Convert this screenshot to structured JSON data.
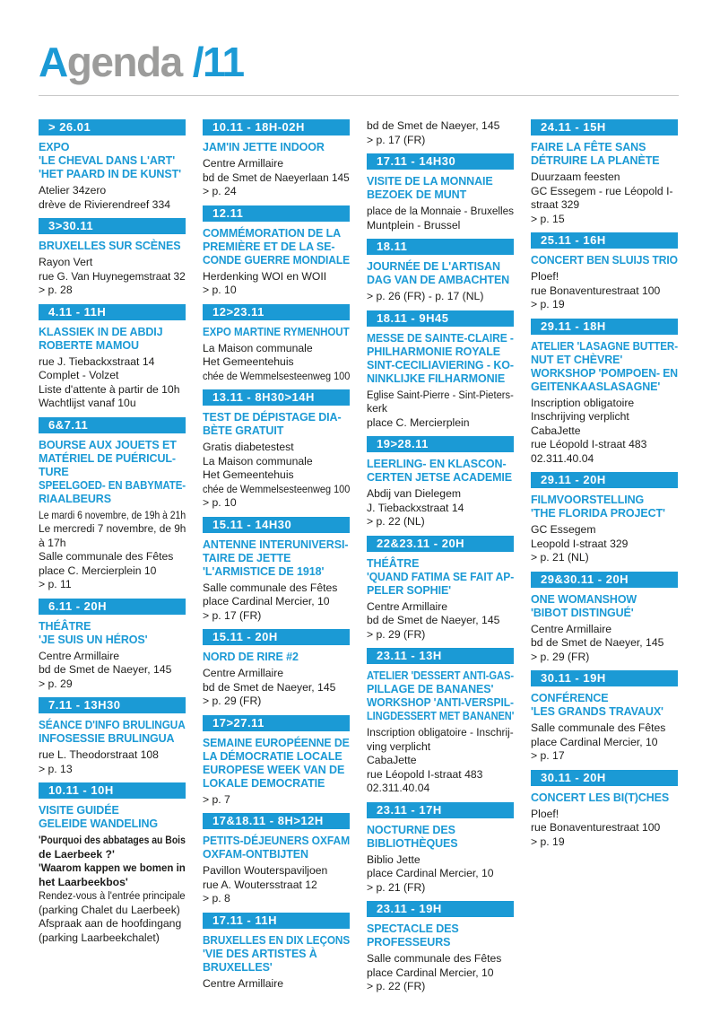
{
  "colors": {
    "accent_blue": "#1b9ad5",
    "title_gray": "#9c9c9b",
    "body_text": "#1d1d1b",
    "rule_gray": "#c8c8c8",
    "bar_text": "#ffffff"
  },
  "header": {
    "accent_letter": "A",
    "title_rest": "genda",
    "issue": "/11"
  },
  "columns": [
    {
      "events": [
        {
          "date": "> 26.01",
          "title_lines": [
            "EXPO",
            "'LE CHEVAL DANS L'ART'",
            "'HET PAARD IN DE KUNST'"
          ],
          "body_lines": [
            "Atelier 34zero",
            "drève de Rivierendreef 334"
          ]
        },
        {
          "date": "3>30.11",
          "title_lines": [
            "BRUXELLES SUR SCÈNES"
          ],
          "body_lines": [
            "Rayon Vert",
            "rue G. Van Huynegemstraat 32",
            "> p. 28"
          ]
        },
        {
          "date": "4.11 - 11H",
          "title_lines": [
            "KLASSIEK IN DE ABDIJ",
            "ROBERTE MAMOU"
          ],
          "body_lines": [
            "rue J. Tiebackxstraat 14",
            "Complet - Volzet",
            "Liste d'attente à partir de 10h",
            "Wachtlijst vanaf 10u"
          ]
        },
        {
          "date": "6&7.11",
          "title_lines": [
            "BOURSE AUX JOUETS ET",
            "MATÉRIEL DE PUÉRICUL-",
            "TURE",
            "SPEELGOED- EN BABYMATE-",
            "RIAALBEURS"
          ],
          "body_lines": [
            "Le mardi 6 novembre, de 19h à 21h",
            "Le mercredi 7 novembre, de 9h",
            "à 17h",
            "Salle communale des Fêtes",
            "place C. Mercierplein 10",
            "> p. 11"
          ]
        },
        {
          "date": "6.11 - 20H",
          "title_lines": [
            "THÉÂTRE",
            "'JE SUIS UN HÉROS'"
          ],
          "body_lines": [
            "Centre Armillaire",
            "bd de Smet de Naeyer, 145",
            "> p. 29"
          ]
        },
        {
          "date": "7.11 - 13H30",
          "title_lines": [
            "SÉANCE D'INFO BRULINGUA",
            "INFOSESSIE BRULINGUA"
          ],
          "body_lines": [
            "rue L. Theodorstraat 108",
            "> p. 13"
          ]
        },
        {
          "date": "10.11 - 10H",
          "title_lines": [
            "VISITE GUIDÉE",
            "GELEIDE WANDELING"
          ],
          "body_lines": [
            {
              "text": "'Pourquoi des abbatages au Bois",
              "bold": true
            },
            {
              "text": "de Laerbeek ?'",
              "bold": true
            },
            {
              "text": "'Waarom kappen we bomen in",
              "bold": true
            },
            {
              "text": "het Laarbeekbos'",
              "bold": true
            },
            "Rendez-vous à l'entrée principale",
            "(parking Chalet du Laerbeek)",
            "Afspraak aan de hoofdingang",
            "(parking Laarbeekchalet)"
          ]
        }
      ]
    },
    {
      "events": [
        {
          "date": "10.11 - 18H-02H",
          "title_lines": [
            "JAM'IN JETTE INDOOR"
          ],
          "body_lines": [
            "Centre Armillaire",
            "bd de Smet de Naeyerlaan 145",
            "> p. 24"
          ]
        },
        {
          "date": "12.11",
          "title_lines": [
            "COMMÉMORATION DE LA",
            "PREMIÈRE ET DE LA SE-",
            "CONDE GUERRE MONDIALE"
          ],
          "body_lines": [
            "Herdenking WOI en WOII",
            "> p. 10"
          ]
        },
        {
          "date": "12>23.11",
          "title_lines": [
            "EXPO MARTINE RYMENHOUT"
          ],
          "body_lines": [
            "La Maison communale",
            "Het Gemeentehuis",
            "chée de Wemmelsesteenweg 100"
          ]
        },
        {
          "date": "13.11 - 8H30>14H",
          "title_lines": [
            "TEST DE DÉPISTAGE DIA-",
            "BÈTE GRATUIT"
          ],
          "body_lines": [
            "Gratis diabetestest",
            "La Maison communale",
            "Het Gemeentehuis",
            "chée de Wemmelsesteenweg 100",
            "> p. 10"
          ]
        },
        {
          "date": "15.11 - 14H30",
          "title_lines": [
            "ANTENNE INTERUNIVERSI-",
            "TAIRE DE JETTE",
            "'L'ARMISTICE DE 1918'"
          ],
          "body_lines": [
            "Salle communale des Fêtes",
            "place Cardinal Mercier, 10",
            "> p. 17 (FR)"
          ]
        },
        {
          "date": "15.11 - 20H",
          "title_lines": [
            "NORD DE RIRE #2"
          ],
          "body_lines": [
            "Centre Armillaire",
            "bd de Smet de Naeyer, 145",
            "> p. 29 (FR)"
          ]
        },
        {
          "date": "17>27.11",
          "title_lines": [
            "SEMAINE EUROPÉENNE DE",
            "LA DÉMOCRATIE LOCALE",
            "EUROPESE WEEK VAN DE",
            "LOKALE DEMOCRATIE"
          ],
          "body_lines": [
            "> p. 7"
          ]
        },
        {
          "date": "17&18.11 - 8H>12H",
          "title_lines": [
            "PETITS-DÉJEUNERS OXFAM",
            "OXFAM-ONTBIJTEN"
          ],
          "body_lines": [
            "Pavillon Wouterspaviljoen",
            "rue A. Woutersstraat 12",
            "> p. 8"
          ]
        },
        {
          "date": "17.11 - 11H",
          "title_lines": [
            "BRUXELLES EN DIX LEÇONS",
            "'VIE DES ARTISTES À",
            "BRUXELLES'"
          ],
          "body_lines": [
            "Centre Armillaire"
          ]
        }
      ]
    },
    {
      "events": [
        {
          "date": null,
          "title_lines": [],
          "body_lines": [
            "bd de Smet de Naeyer, 145",
            "> p. 17 (FR)"
          ]
        },
        {
          "date": "17.11 - 14H30",
          "title_lines": [
            "VISITE DE LA MONNAIE",
            "BEZOEK DE MUNT"
          ],
          "body_lines": [
            "place de la Monnaie - Bruxelles",
            "Muntplein - Brussel"
          ]
        },
        {
          "date": "18.11",
          "title_lines": [
            "JOURNÉE DE L'ARTISAN",
            "DAG VAN DE AMBACHTEN"
          ],
          "body_lines": [
            "> p. 26 (FR) - p. 17 (NL)"
          ]
        },
        {
          "date": "18.11 - 9H45",
          "title_lines": [
            "MESSE DE SAINTE-CLAIRE -",
            "PHILHARMONIE ROYALE",
            "SINT-CECILIAVIERING - KO-",
            "NINKLIJKE FILHARMONIE"
          ],
          "body_lines": [
            "Eglise Saint-Pierre - Sint-Pieters-",
            "kerk",
            "place C. Mercierplein"
          ]
        },
        {
          "date": "19>28.11",
          "title_lines": [
            "LEERLING- EN KLASCON-",
            "CERTEN JETSE ACADEMIE"
          ],
          "body_lines": [
            "Abdij van Dielegem",
            "J. Tiebackxstraat 14",
            "> p. 22 (NL)"
          ]
        },
        {
          "date": "22&23.11 - 20H",
          "title_lines": [
            "THÉÂTRE",
            "'QUAND FATIMA SE FAIT AP-",
            "PELER SOPHIE'"
          ],
          "body_lines": [
            "Centre Armillaire",
            "bd de Smet de Naeyer, 145",
            "> p. 29 (FR)"
          ]
        },
        {
          "date": "23.11 - 13H",
          "title_lines": [
            "ATELIER 'DESSERT ANTI-GAS-",
            "PILLAGE DE BANANES'",
            "WORKSHOP 'ANTI-VERSPIL-",
            "LINGDESSERT MET BANANEN'"
          ],
          "body_lines": [
            "Inscription obligatoire - Inschrij-",
            "ving verplicht",
            "CabaJette",
            "rue Léopold I-straat 483",
            "02.311.40.04"
          ]
        },
        {
          "date": "23.11 - 17H",
          "title_lines": [
            "NOCTURNE DES",
            "BIBLIOTHÈQUES"
          ],
          "body_lines": [
            "Biblio Jette",
            "place Cardinal Mercier, 10",
            "> p. 21 (FR)"
          ]
        },
        {
          "date": "23.11 - 19H",
          "title_lines": [
            "SPECTACLE DES",
            "PROFESSEURS"
          ],
          "body_lines": [
            "Salle communale des Fêtes",
            "place Cardinal Mercier, 10",
            "> p. 22 (FR)"
          ]
        }
      ]
    },
    {
      "events": [
        {
          "date": "24.11 - 15H",
          "title_lines": [
            "FAIRE LA FÊTE SANS",
            "DÉTRUIRE LA PLANÈTE"
          ],
          "body_lines": [
            "Duurzaam feesten",
            "GC Essegem - rue Léopold I-",
            "straat 329",
            "> p. 15"
          ]
        },
        {
          "date": "25.11 - 16H",
          "title_lines": [
            "CONCERT BEN SLUIJS TRIO"
          ],
          "body_lines": [
            "Ploef!",
            "rue Bonaventurestraat 100",
            "> p. 19"
          ]
        },
        {
          "date": "29.11 - 18H",
          "title_lines": [
            "ATELIER 'LASAGNE BUTTER-",
            "NUT ET CHÈVRE'",
            "WORKSHOP 'POMPOEN- EN",
            "GEITENKAASLASAGNE'"
          ],
          "body_lines": [
            "Inscription obligatoire",
            "Inschrijving verplicht",
            "CabaJette",
            "rue Léopold I-straat 483",
            "02.311.40.04"
          ]
        },
        {
          "date": "29.11 - 20H",
          "title_lines": [
            "FILMVOORSTELLING",
            "'THE FLORIDA PROJECT'"
          ],
          "body_lines": [
            "GC Essegem",
            "Leopold I-straat 329",
            "> p. 21 (NL)"
          ]
        },
        {
          "date": "29&30.11 - 20H",
          "title_lines": [
            "ONE WOMANSHOW",
            "'BIBOT DISTINGUÉ'"
          ],
          "body_lines": [
            "Centre Armillaire",
            "bd de Smet de Naeyer, 145",
            "> p. 29 (FR)"
          ]
        },
        {
          "date": "30.11 - 19H",
          "title_lines": [
            "CONFÉRENCE",
            "'LES GRANDS TRAVAUX'"
          ],
          "body_lines": [
            "Salle communale des Fêtes",
            "place Cardinal Mercier, 10",
            "> p. 17"
          ]
        },
        {
          "date": "30.11 - 20H",
          "title_lines": [
            "CONCERT LES BI(T)CHES"
          ],
          "body_lines": [
            "Ploef!",
            "rue Bonaventurestraat 100",
            "> p. 19"
          ]
        }
      ]
    }
  ]
}
